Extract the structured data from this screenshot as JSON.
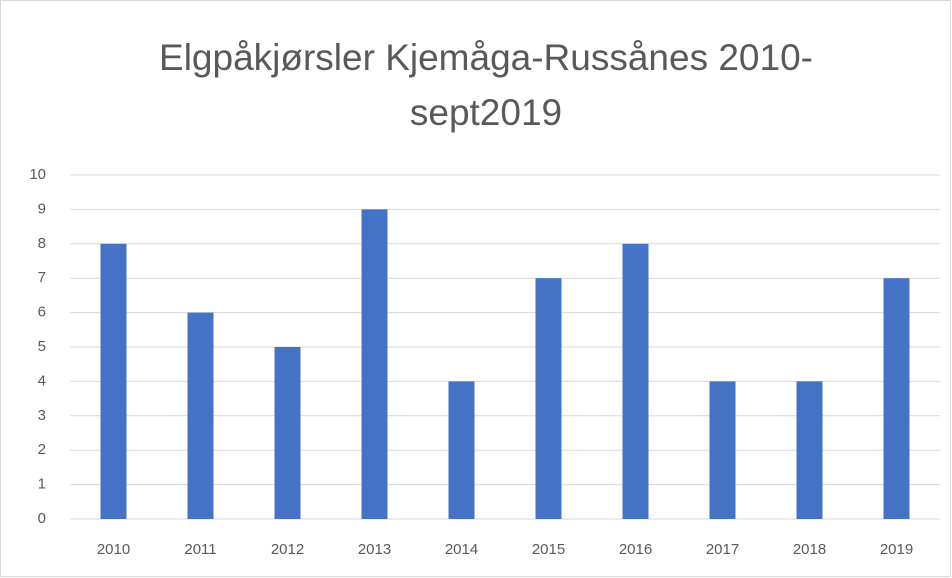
{
  "chart_data": {
    "type": "bar",
    "title": [
      "Elgpåkjørsler Kjemåga-Russånes 2010-",
      "sept2019"
    ],
    "categories": [
      "2010",
      "2011",
      "2012",
      "2013",
      "2014",
      "2015",
      "2016",
      "2017",
      "2018",
      "2019"
    ],
    "values": [
      8,
      6,
      5,
      9,
      4,
      7,
      8,
      4,
      4,
      7
    ],
    "color": "#4472c4",
    "ylim": [
      0,
      10
    ],
    "yticks": [
      0,
      1,
      2,
      3,
      4,
      5,
      6,
      7,
      8,
      9,
      10
    ],
    "grid": true
  }
}
